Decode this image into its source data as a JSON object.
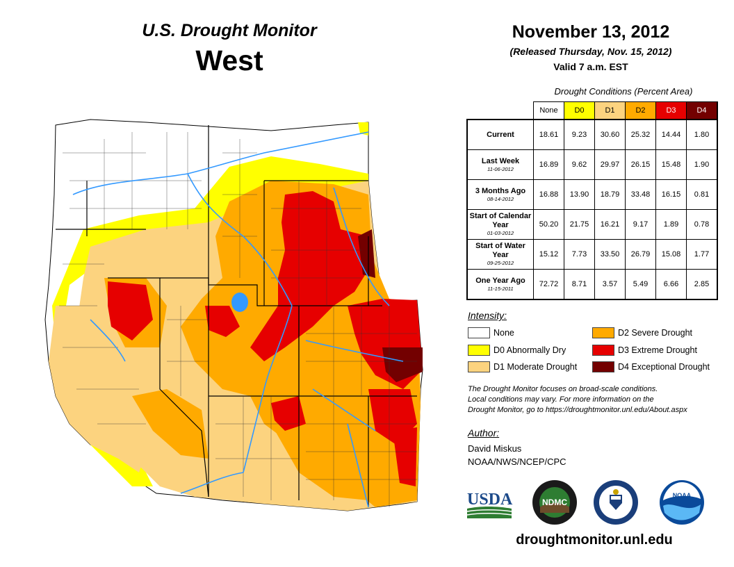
{
  "header": {
    "title": "U.S. Drought Monitor",
    "region": "West",
    "date": "November 13, 2012",
    "released": "(Released Thursday, Nov. 15, 2012)",
    "valid": "Valid 7 a.m. EST"
  },
  "conditions": {
    "caption": "Drought Conditions (Percent Area)",
    "columns": [
      "None",
      "D0",
      "D1",
      "D2",
      "D3",
      "D4"
    ],
    "column_colors": [
      "#ffffff",
      "#ffff00",
      "#fcd37f",
      "#ffaa00",
      "#e60000",
      "#730000"
    ],
    "rows": [
      {
        "label": "Current",
        "date": "",
        "values": [
          "18.61",
          "9.23",
          "30.60",
          "25.32",
          "14.44",
          "1.80"
        ]
      },
      {
        "label": "Last Week",
        "date": "11-06-2012",
        "values": [
          "16.89",
          "9.62",
          "29.97",
          "26.15",
          "15.48",
          "1.90"
        ]
      },
      {
        "label": "3 Months Ago",
        "date": "08-14-2012",
        "values": [
          "16.88",
          "13.90",
          "18.79",
          "33.48",
          "16.15",
          "0.81"
        ]
      },
      {
        "label": "Start of Calendar Year",
        "date": "01-03-2012",
        "values": [
          "50.20",
          "21.75",
          "16.21",
          "9.17",
          "1.89",
          "0.78"
        ]
      },
      {
        "label": "Start of Water Year",
        "date": "09-25-2012",
        "values": [
          "15.12",
          "7.73",
          "33.50",
          "26.79",
          "15.08",
          "1.77"
        ]
      },
      {
        "label": "One Year Ago",
        "date": "11-15-2011",
        "values": [
          "72.72",
          "8.71",
          "3.57",
          "5.49",
          "6.66",
          "2.85"
        ]
      }
    ]
  },
  "legend": {
    "title": "Intensity:",
    "items": [
      {
        "label": "None",
        "color": "#ffffff"
      },
      {
        "label": "D0 Abnormally Dry",
        "color": "#ffff00"
      },
      {
        "label": "D1 Moderate Drought",
        "color": "#fcd37f"
      },
      {
        "label": "D2 Severe Drought",
        "color": "#ffaa00"
      },
      {
        "label": "D3 Extreme Drought",
        "color": "#e60000"
      },
      {
        "label": "D4 Exceptional Drought",
        "color": "#730000"
      }
    ]
  },
  "note": {
    "line1": "The Drought Monitor focuses on broad-scale conditions.",
    "line2": "Local conditions may vary. For more information on the",
    "line3": "Drought Monitor, go to https://droughtmonitor.unl.edu/About.aspx"
  },
  "author": {
    "title": "Author:",
    "name": "David Miskus",
    "org": "NOAA/NWS/NCEP/CPC"
  },
  "logos": {
    "usda": "USDA",
    "ndmc": "NDMC",
    "noaa": "NOAA"
  },
  "website": "droughtmonitor.unl.edu",
  "map_colors": {
    "water": "#3399ff",
    "border": "#000000"
  }
}
